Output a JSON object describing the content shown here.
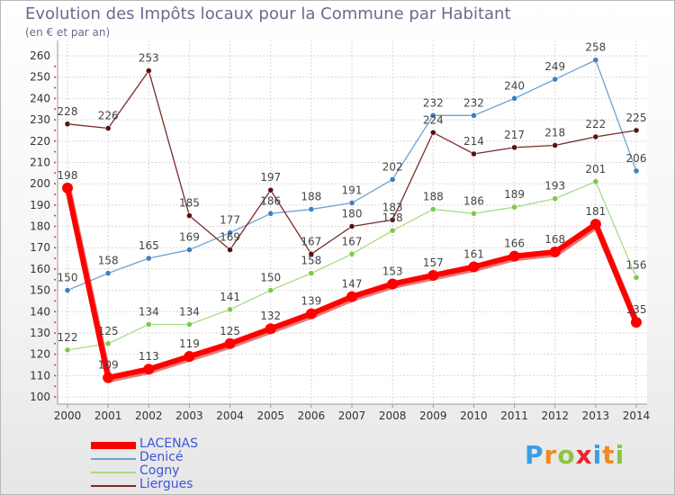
{
  "header": {
    "title": "Evolution des Impôts locaux pour la Commune par Habitant",
    "subtitle": "(en € et par an)"
  },
  "logo": {
    "text": "Proxiti",
    "letter_colors": [
      "#3a9ee4",
      "#f08a1c",
      "#8cc63e",
      "#e8262f",
      "#3a9ee4",
      "#f08a1c",
      "#8cc63e"
    ]
  },
  "chart_data": {
    "type": "line",
    "title": "Evolution des Impôts locaux pour la Commune par Habitant",
    "subtitle": "(en € et par an)",
    "xlabel": "",
    "ylabel": "",
    "ylim": [
      100,
      260
    ],
    "ytick_step": 10,
    "grid": true,
    "legend_position": "bottom-left",
    "categories": [
      "2000",
      "2001",
      "2002",
      "2003",
      "2004",
      "2005",
      "2006",
      "2007",
      "2008",
      "2009",
      "2010",
      "2011",
      "2012",
      "2013",
      "2014"
    ],
    "series": [
      {
        "name": "LACENAS",
        "color": "#ff0000",
        "marker_color": "#ff0000",
        "emphasis": true,
        "values": [
          198,
          109,
          113,
          119,
          125,
          132,
          139,
          147,
          153,
          157,
          161,
          166,
          168,
          181,
          135
        ]
      },
      {
        "name": "Denicé",
        "color": "#6ba1d6",
        "marker_color": "#3b7fc4",
        "emphasis": false,
        "values": [
          150,
          158,
          165,
          169,
          177,
          186,
          188,
          191,
          202,
          232,
          232,
          240,
          249,
          258,
          206
        ]
      },
      {
        "name": "Cogny",
        "color": "#a9dc7f",
        "marker_color": "#7cc94a",
        "emphasis": false,
        "values": [
          122,
          125,
          134,
          134,
          141,
          150,
          158,
          167,
          178,
          188,
          186,
          189,
          193,
          201,
          156
        ]
      },
      {
        "name": "Liergues",
        "color": "#7a2a2a",
        "marker_color": "#5a1010",
        "emphasis": false,
        "values": [
          228,
          226,
          253,
          185,
          169,
          197,
          167,
          180,
          183,
          224,
          214,
          217,
          218,
          222,
          225
        ]
      }
    ]
  }
}
